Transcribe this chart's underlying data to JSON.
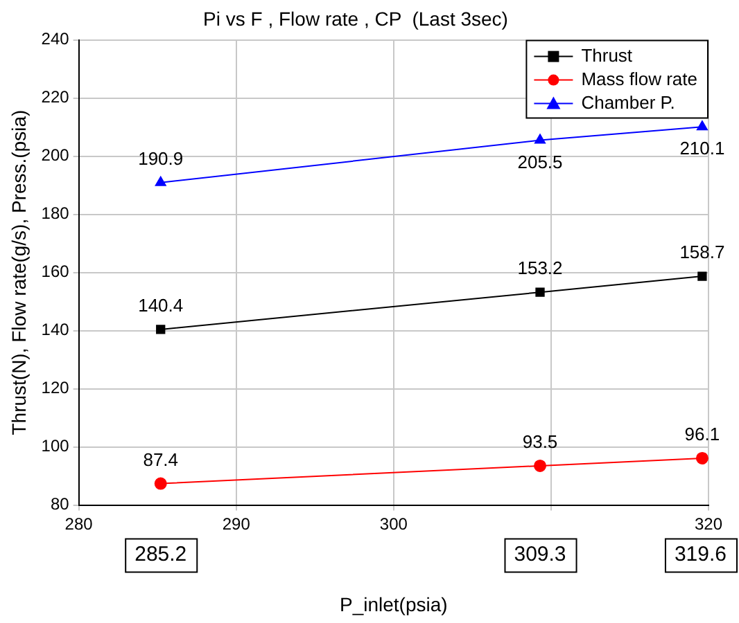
{
  "chart_data": {
    "type": "line",
    "title": "Pi vs F , Flow rate , CP  (Last 3sec)",
    "xlabel": "P_inlet(psia)",
    "ylabel": "Thrust(N), Flow rate(g/s), Press.(psia)",
    "x": [
      285.2,
      309.3,
      319.6
    ],
    "series": [
      {
        "name": "Thrust",
        "color": "#000000",
        "marker": "square",
        "values": [
          140.4,
          153.2,
          158.7
        ]
      },
      {
        "name": "Mass flow rate",
        "color": "#ff0000",
        "marker": "circle",
        "values": [
          87.4,
          93.5,
          96.1
        ]
      },
      {
        "name": "Chamber P.",
        "color": "#0000ff",
        "marker": "triangle",
        "values": [
          190.9,
          205.5,
          210.1
        ]
      }
    ],
    "xlim": [
      280,
      320
    ],
    "xticks": [
      280,
      290,
      300,
      {
        "value": 310,
        "label": null
      },
      320
    ],
    "ylim": [
      80,
      240
    ],
    "yticks": [
      80,
      100,
      120,
      140,
      160,
      180,
      200,
      220,
      240
    ],
    "annotations": [
      "285.2",
      "309.3",
      "319.6"
    ],
    "grid": true,
    "legend": "top right",
    "data_labels": true,
    "line_style": "solid"
  }
}
